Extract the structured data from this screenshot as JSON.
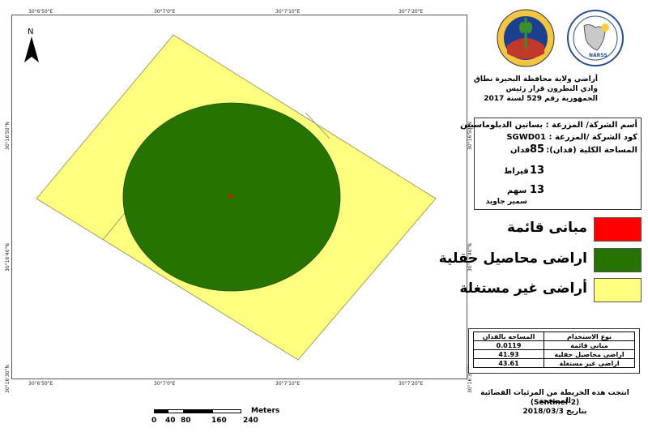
{
  "map": {
    "north_label": "N",
    "ticks_top": [
      "30°6'50\"E",
      "30°7'0\"E",
      "30°7'10\"E",
      "30°7'20\"E"
    ],
    "ticks_bottom": [
      "30°6'50\"E",
      "30°7'0\"E",
      "30°7'10\"E",
      "30°7'20\"E"
    ],
    "ticks_left": [
      "30°16'50\"N",
      "30°16'40\"N",
      "30°16'30\"N"
    ],
    "ticks_right": [
      "30°16'50\"N",
      "30°16'40\"N",
      "30°16'30\"N"
    ],
    "colors": {
      "buildings": "#ff0000",
      "crops": "#267300",
      "unused": "#ffff7f"
    }
  },
  "scale_bar": {
    "unit": "Meters",
    "labels": [
      "0",
      "40",
      "80",
      "160",
      "240"
    ]
  },
  "header": {
    "title_lines": [
      "أراضي ولاية محافظة البحيرة نطاق",
      "وادي النطرون قرار رئيس",
      "الجمهورية رقم 529 لسنة 2017"
    ]
  },
  "info": {
    "company_name": "أسم الشركة/ المزرعة : بساتين الدبلوماسيين",
    "company_code": "كود الشركة /المزرعة : SGWD01",
    "total_area_label": "المساحة الكلية (فدان):",
    "total_area_value": "85",
    "total_area_unit": "فدان",
    "qirat_value": "13",
    "qirat_unit": "قيراط",
    "sahm_value": "13",
    "sahm_unit": "سهم",
    "owner": "سمير جاويد"
  },
  "legend": [
    {
      "label": "مبانى قائمة",
      "color": "#ff0000"
    },
    {
      "label": "اراضى محاصيل حقلية",
      "color": "#267300"
    },
    {
      "label": "أراضى غير مستغلة",
      "color": "#ffff7f"
    }
  ],
  "area_table": {
    "headers": [
      "نوع الاستخدام",
      "المساحه بالفدان"
    ],
    "rows": [
      [
        "مبانى قائمة",
        "0.0119"
      ],
      [
        "اراضى محاصيل حقلية",
        "41.93"
      ],
      [
        "اراضى غير مستغلة",
        "43.61"
      ]
    ]
  },
  "footer": {
    "lines": [
      "انتجت هذه الخريطة من المرئيات الفضائية المصححة",
      "(Sentinel-2)",
      "بتاريخ 2018/03/3"
    ]
  }
}
